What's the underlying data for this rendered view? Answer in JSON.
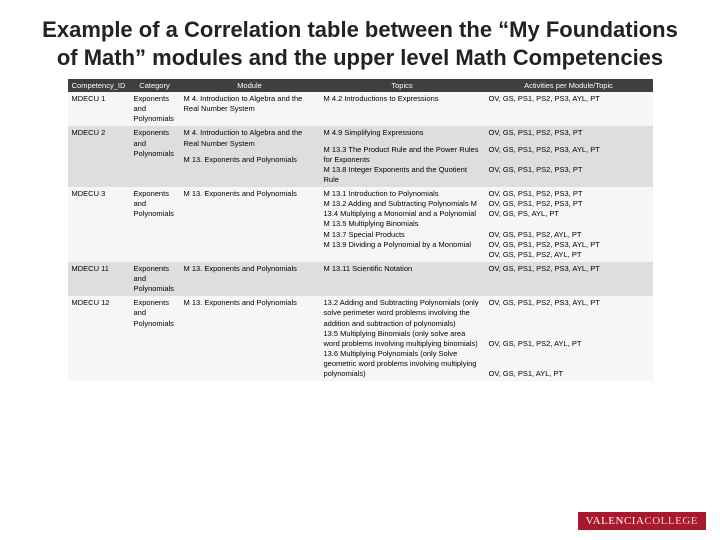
{
  "title": "Example of a Correlation table between the “My Foundations of Math” modules and the upper level Math Competencies",
  "columns": [
    "Competency_ID",
    "Category",
    "Module",
    "Topics",
    "Activities per Module/Topic"
  ],
  "rows": [
    {
      "id": "MDECU 1",
      "category": "Exponents and Polynomials",
      "modules": [
        "M 4. Introduction to Algebra and the Real Number System"
      ],
      "topics": [
        "M 4.2 Introductions to Expressions"
      ],
      "activities": [
        "OV, GS, PS1, PS2, PS3, AYL, PT"
      ]
    },
    {
      "id": "MDECU 2",
      "category": "Exponents and Polynomials",
      "modules": [
        "M 4. Introduction to Algebra and the Real Number System",
        "M 13. Exponents and Polynomials"
      ],
      "topics": [
        "M 4.9 Simplifying Expressions",
        "M 13.3 The Product Rule and the Power Rules for Exponents\nM 13.8 Integer Exponents and the Quotient Rule"
      ],
      "activities": [
        "OV, GS, PS1, PS2, PS3, PT",
        "OV, GS, PS1, PS2, PS3, AYL, PT\n\nOV, GS, PS1, PS2, PS3, PT"
      ]
    },
    {
      "id": "MDECU 3",
      "category": "Exponents and Polynomials",
      "modules": [
        "M 13. Exponents and Polynomials"
      ],
      "topics": [
        "M 13.1 Introduction to Polynomials\nM 13.2 Adding and Subtracting Polynomials M 13.4 Multiplying a Monomial and a Polynomial\nM 13.5 Multiplying Binomials\nM 13.7 Special Products\nM 13.9 Dividing a Polynomial by a Monomial"
      ],
      "activities": [
        "OV, GS, PS1, PS2, PS3, PT\nOV, GS, PS1, PS2, PS3, PT\nOV, GS, PS, AYL, PT\n\nOV, GS, PS1, PS2, AYL, PT\nOV, GS, PS1, PS2, PS3, AYL, PT\nOV, GS, PS1, PS2, AYL, PT"
      ]
    },
    {
      "id": "MDECU 11",
      "category": "Exponents and Polynomials",
      "modules": [
        "M 13. Exponents and Polynomials"
      ],
      "topics": [
        "M 13.11 Scientific Notation"
      ],
      "activities": [
        "OV, GS, PS1, PS2, PS3, AYL, PT"
      ]
    },
    {
      "id": "MDECU 12",
      "category": "Exponents and Polynomials",
      "modules": [
        "M 13. Exponents and Polynomials"
      ],
      "topics": [
        "13.2 Adding and Subtracting Polynomials (only solve perimeter word problems involving the addition and subtraction of polynomials)\n13.5 Multiplying Binomials (only solve area word problems involving multiplying binomials)\n13.6 Multiplying Polynomials (only Solve geometric word problems involving multiplying polynomials)"
      ],
      "activities": [
        "OV, GS, PS1, PS2, PS3, AYL, PT\n\n\n\nOV, GS, PS1, PS2, AYL, PT\n\n\nOV, GS, PS1, AYL, PT"
      ]
    }
  ],
  "logo": {
    "part1": "VALENCIA",
    "part2": "COLLEGE"
  },
  "colors": {
    "header_bg": "#3f3f3f",
    "band_light": "#f6f6f6",
    "band_dark": "#dedede",
    "logo_bg": "#a6192e"
  }
}
